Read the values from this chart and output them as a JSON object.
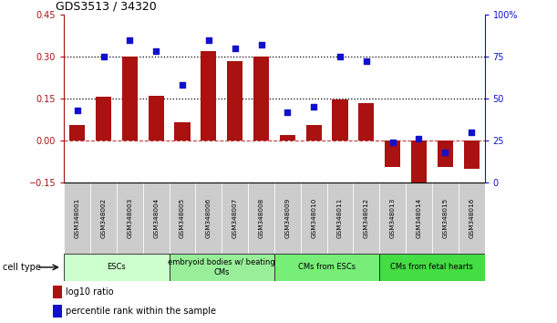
{
  "title": "GDS3513 / 34320",
  "samples": [
    "GSM348001",
    "GSM348002",
    "GSM348003",
    "GSM348004",
    "GSM348005",
    "GSM348006",
    "GSM348007",
    "GSM348008",
    "GSM348009",
    "GSM348010",
    "GSM348011",
    "GSM348012",
    "GSM348013",
    "GSM348014",
    "GSM348015",
    "GSM348016"
  ],
  "log10_ratio": [
    0.055,
    0.155,
    0.3,
    0.16,
    0.065,
    0.32,
    0.285,
    0.3,
    0.02,
    0.055,
    0.148,
    0.135,
    -0.095,
    -0.175,
    -0.095,
    -0.1
  ],
  "percentile_rank": [
    43,
    75,
    85,
    78,
    58,
    85,
    80,
    82,
    42,
    45,
    75,
    72,
    24,
    26,
    18,
    30
  ],
  "bar_color": "#aa1111",
  "dot_color": "#1111cc",
  "ylim_left": [
    -0.15,
    0.45
  ],
  "ylim_right": [
    0,
    100
  ],
  "yticks_left": [
    -0.15,
    0.0,
    0.15,
    0.3,
    0.45
  ],
  "yticks_right": [
    0,
    25,
    50,
    75,
    100
  ],
  "ytick_labels_right": [
    "0",
    "25",
    "50",
    "75",
    "100%"
  ],
  "hlines": [
    0.15,
    0.3
  ],
  "cell_type_groups": [
    {
      "label": "ESCs",
      "start": 0,
      "end": 3,
      "color": "#ccffcc"
    },
    {
      "label": "embryoid bodies w/ beating\nCMs",
      "start": 4,
      "end": 7,
      "color": "#99ee99"
    },
    {
      "label": "CMs from ESCs",
      "start": 8,
      "end": 11,
      "color": "#77ee77"
    },
    {
      "label": "CMs from fetal hearts",
      "start": 12,
      "end": 15,
      "color": "#44dd44"
    }
  ],
  "legend_bar_label": "log10 ratio",
  "legend_dot_label": "percentile rank within the sample",
  "cell_type_label": "cell type",
  "bar_width": 0.6
}
